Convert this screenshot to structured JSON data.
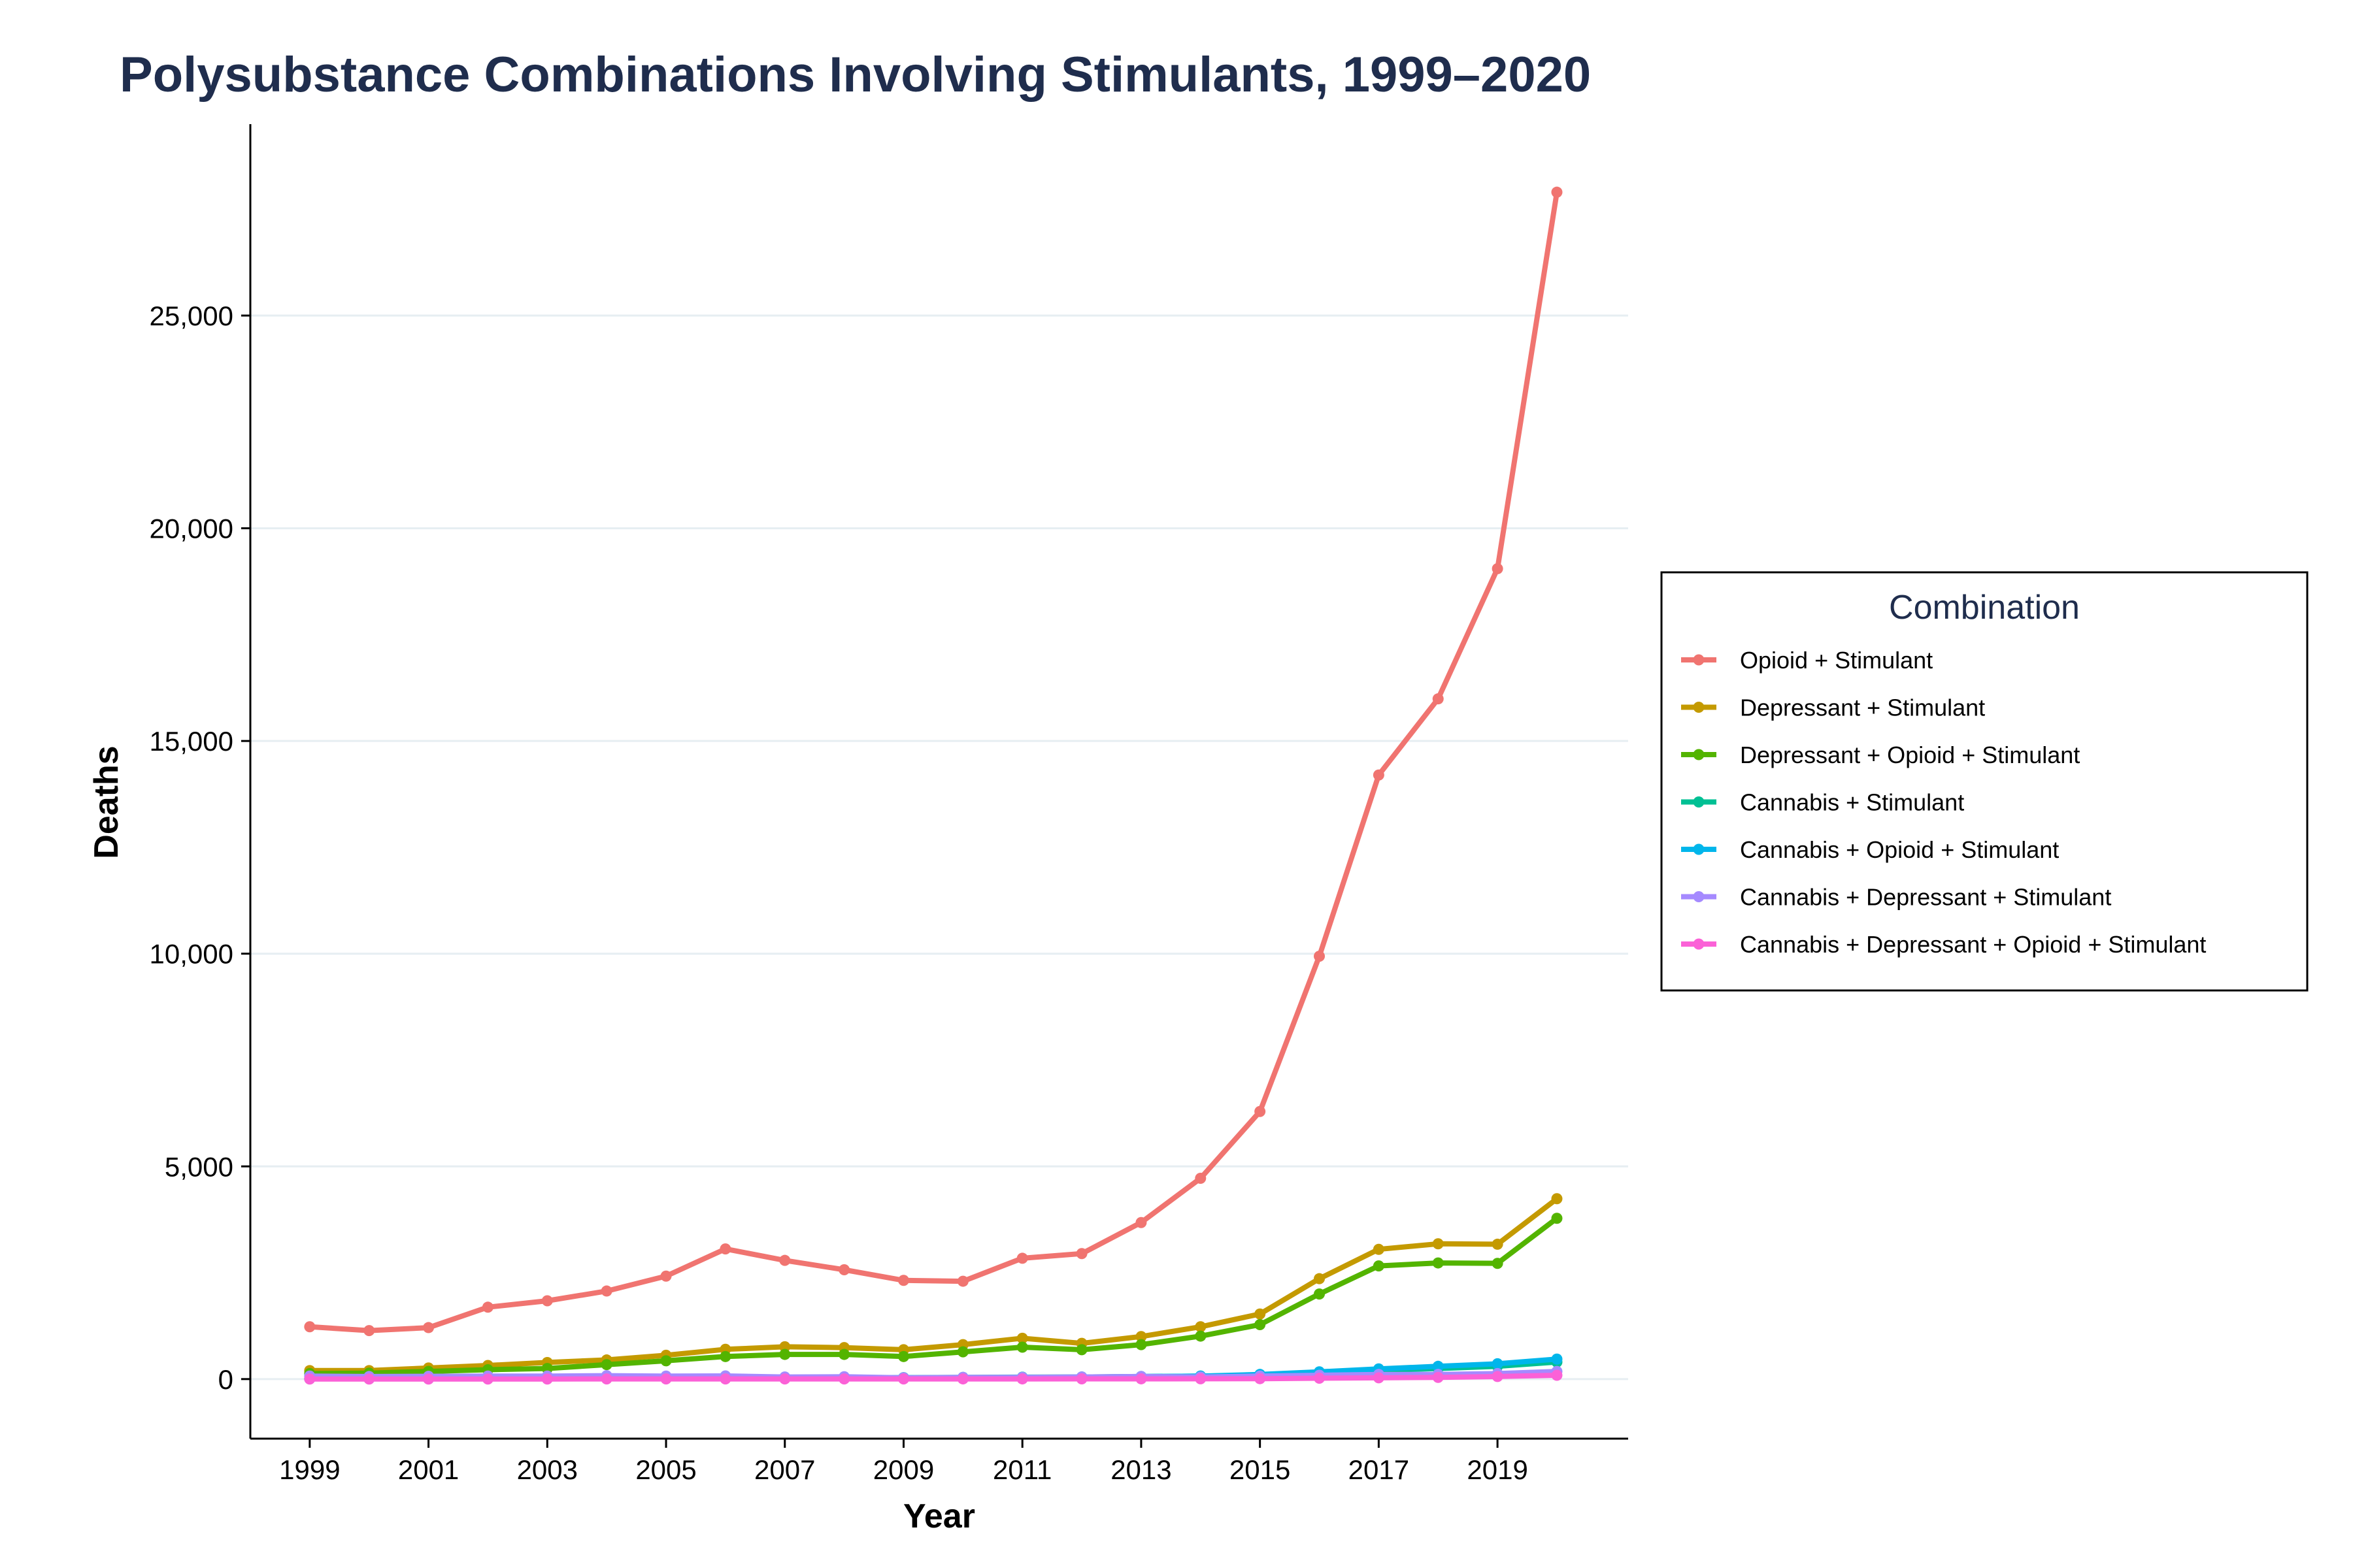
{
  "chart_data": {
    "type": "line",
    "title": "Polysubstance Combinations Involving Stimulants, 1999–2020",
    "xlabel": "Year",
    "ylabel": "Deaths",
    "x": [
      1999,
      2000,
      2001,
      2002,
      2003,
      2004,
      2005,
      2006,
      2007,
      2008,
      2009,
      2010,
      2011,
      2012,
      2013,
      2014,
      2015,
      2016,
      2017,
      2018,
      2019,
      2020
    ],
    "x_ticks": [
      "1999",
      "2001",
      "2003",
      "2005",
      "2007",
      "2009",
      "2011",
      "2013",
      "2015",
      "2017",
      "2019"
    ],
    "y_ticks": [
      "0",
      "5,000",
      "10,000",
      "15,000",
      "20,000",
      "25,000"
    ],
    "y_tick_values": [
      0,
      5000,
      10000,
      15000,
      20000,
      25000
    ],
    "xlim": [
      1998,
      2021.2
    ],
    "ylim": [
      -1400,
      29500
    ],
    "grid": "horizontal",
    "legend_title": "Combination",
    "legend_position": "right",
    "series": [
      {
        "name": "Opioid + Stimulant",
        "color": "#F07470",
        "values": [
          1230,
          1140,
          1210,
          1690,
          1840,
          2070,
          2420,
          3060,
          2790,
          2570,
          2320,
          2300,
          2840,
          2950,
          3680,
          4720,
          6290,
          9940,
          14200,
          15990,
          19050,
          27900
        ]
      },
      {
        "name": "Depressant + Stimulant",
        "color": "#C49A00",
        "values": [
          200,
          200,
          260,
          320,
          390,
          450,
          560,
          700,
          760,
          740,
          690,
          810,
          960,
          840,
          1000,
          1230,
          1530,
          2360,
          3050,
          3180,
          3170,
          4240
        ]
      },
      {
        "name": "Depressant + Opioid + Stimulant",
        "color": "#53B400",
        "values": [
          130,
          140,
          180,
          220,
          250,
          340,
          430,
          530,
          580,
          580,
          530,
          640,
          750,
          690,
          810,
          1010,
          1280,
          2000,
          2660,
          2730,
          2720,
          3780
        ]
      },
      {
        "name": "Cannabis + Stimulant",
        "color": "#00C094",
        "values": [
          10,
          10,
          15,
          20,
          25,
          30,
          35,
          40,
          40,
          40,
          35,
          40,
          45,
          50,
          60,
          70,
          90,
          150,
          200,
          250,
          300,
          400
        ]
      },
      {
        "name": "Cannabis + Opioid + Stimulant",
        "color": "#00B6EB",
        "values": [
          5,
          5,
          5,
          10,
          10,
          15,
          20,
          25,
          30,
          30,
          30,
          35,
          40,
          45,
          60,
          70,
          110,
          170,
          240,
          300,
          360,
          470
        ]
      },
      {
        "name": "Cannabis + Depressant + Stimulant",
        "color": "#A58AFF",
        "values": [
          70,
          60,
          65,
          70,
          70,
          80,
          70,
          75,
          50,
          55,
          30,
          40,
          40,
          50,
          60,
          50,
          70,
          90,
          110,
          110,
          130,
          180
        ]
      },
      {
        "name": "Cannabis + Depressant + Opioid + Stimulant",
        "color": "#FB61D7",
        "values": [
          2,
          2,
          2,
          2,
          2,
          3,
          3,
          3,
          3,
          3,
          3,
          4,
          4,
          5,
          6,
          7,
          10,
          20,
          30,
          40,
          60,
          90
        ]
      }
    ]
  }
}
